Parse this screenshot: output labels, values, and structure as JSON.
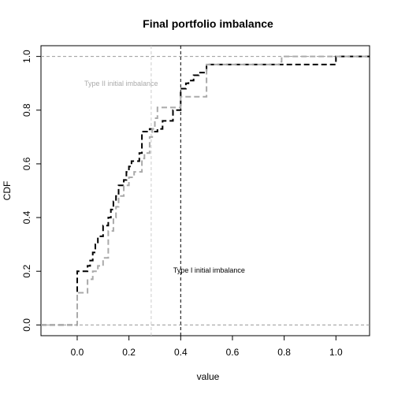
{
  "chart_data": {
    "type": "line",
    "title": "Final portfolio imbalance",
    "xlabel": "value",
    "ylabel": "CDF",
    "xlim": [
      -0.14,
      1.13
    ],
    "ylim": [
      -0.04,
      1.04
    ],
    "x_ticks": [
      0.0,
      0.2,
      0.4,
      0.6,
      0.8,
      1.0
    ],
    "x_tick_labels": [
      "0.0",
      "0.2",
      "0.4",
      "0.6",
      "0.8",
      "1.0"
    ],
    "y_ticks": [
      0.0,
      0.2,
      0.4,
      0.6,
      0.8,
      1.0
    ],
    "y_tick_labels": [
      "0.0",
      "0.2",
      "0.4",
      "0.6",
      "0.8",
      "1.0"
    ],
    "grid": false,
    "series": [
      {
        "color": "#000000",
        "dash": "dashed",
        "steps": [
          [
            -0.14,
            0.0
          ],
          [
            0.0,
            0.2
          ],
          [
            0.04,
            0.22
          ],
          [
            0.05,
            0.24
          ],
          [
            0.06,
            0.27
          ],
          [
            0.07,
            0.3
          ],
          [
            0.08,
            0.33
          ],
          [
            0.1,
            0.37
          ],
          [
            0.12,
            0.4
          ],
          [
            0.13,
            0.43
          ],
          [
            0.14,
            0.46
          ],
          [
            0.15,
            0.48
          ],
          [
            0.16,
            0.52
          ],
          [
            0.18,
            0.54
          ],
          [
            0.19,
            0.57
          ],
          [
            0.2,
            0.59
          ],
          [
            0.21,
            0.61
          ],
          [
            0.24,
            0.64
          ],
          [
            0.25,
            0.72
          ],
          [
            0.28,
            0.73
          ],
          [
            0.3,
            0.72
          ],
          [
            0.31,
            0.73
          ],
          [
            0.33,
            0.76
          ],
          [
            0.37,
            0.8
          ],
          [
            0.4,
            0.88
          ],
          [
            0.42,
            0.9
          ],
          [
            0.43,
            0.91
          ],
          [
            0.45,
            0.93
          ],
          [
            0.47,
            0.94
          ],
          [
            0.5,
            0.97
          ],
          [
            1.0,
            1.0
          ],
          [
            1.13,
            1.0
          ]
        ]
      },
      {
        "color": "#aaaaaa",
        "dash": "dashed",
        "steps": [
          [
            -0.14,
            0.0
          ],
          [
            0.0,
            0.12
          ],
          [
            0.04,
            0.17
          ],
          [
            0.06,
            0.2
          ],
          [
            0.08,
            0.22
          ],
          [
            0.1,
            0.25
          ],
          [
            0.12,
            0.35
          ],
          [
            0.14,
            0.4
          ],
          [
            0.15,
            0.44
          ],
          [
            0.16,
            0.48
          ],
          [
            0.18,
            0.52
          ],
          [
            0.2,
            0.55
          ],
          [
            0.22,
            0.57
          ],
          [
            0.25,
            0.62
          ],
          [
            0.26,
            0.64
          ],
          [
            0.28,
            0.7
          ],
          [
            0.29,
            0.73
          ],
          [
            0.3,
            0.77
          ],
          [
            0.31,
            0.81
          ],
          [
            0.4,
            0.85
          ],
          [
            0.5,
            0.97
          ],
          [
            0.78,
            0.98
          ],
          [
            0.79,
            1.0
          ],
          [
            1.13,
            1.0
          ]
        ]
      }
    ],
    "reference_lines": [
      {
        "orientation": "horizontal",
        "value": 0.0,
        "color": "#999999",
        "dash": "dashed"
      },
      {
        "orientation": "horizontal",
        "value": 1.0,
        "color": "#999999",
        "dash": "dashed"
      },
      {
        "orientation": "vertical",
        "value": 0.286,
        "color": "#cccccc",
        "dash": "dashed"
      },
      {
        "orientation": "vertical",
        "value": 0.4,
        "color": "#000000",
        "dash": "dashed"
      }
    ],
    "annotations": [
      {
        "text": "Type II initial imbalance",
        "x": 0.17,
        "y": 0.89,
        "color": "#aaaaaa"
      },
      {
        "text": "Type I initial imbalance",
        "x": 0.51,
        "y": 0.195,
        "color": "#000000"
      }
    ]
  }
}
